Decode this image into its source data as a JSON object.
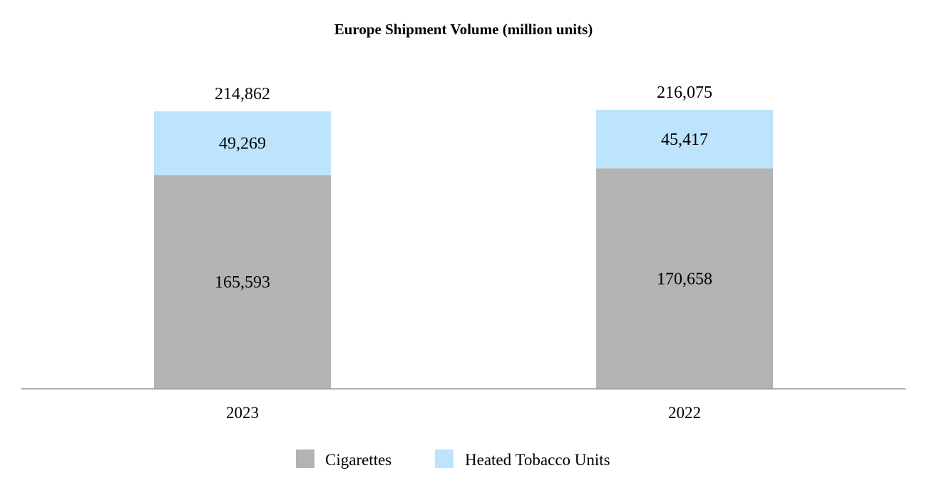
{
  "chart_data": {
    "type": "bar",
    "stacked": true,
    "title": "Europe Shipment Volume (million units)",
    "xlabel": "",
    "ylabel": "",
    "categories": [
      "2023",
      "2022"
    ],
    "series": [
      {
        "name": "Cigarettes",
        "color": "#b3b3b3",
        "values": [
          165593,
          170658
        ],
        "labels": [
          "165,593",
          "170,658"
        ]
      },
      {
        "name": "Heated Tobacco Units",
        "color": "#bde3fd",
        "values": [
          49269,
          45417
        ],
        "labels": [
          "49,269",
          "45,417"
        ]
      }
    ],
    "totals": [
      214862,
      216075
    ],
    "total_labels": [
      "214,862",
      "216,075"
    ],
    "ylim": [
      0,
      300000
    ],
    "grid": false,
    "legend": "bottom"
  }
}
